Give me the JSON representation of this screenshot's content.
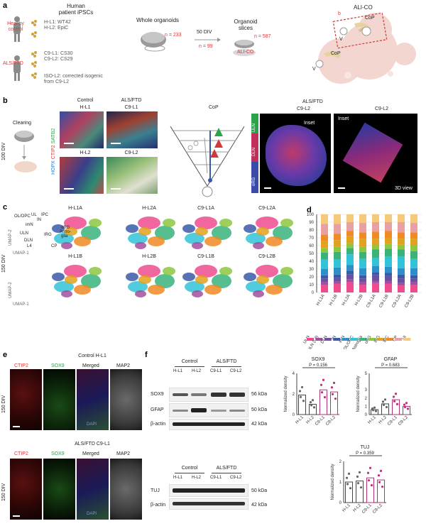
{
  "panels": {
    "a": "a",
    "b": "b",
    "c": "c",
    "d": "d",
    "e": "e",
    "f": "f"
  },
  "a": {
    "human_ipscs": "Human\npatient iPSCs",
    "healthy": "Healthy\ncontrol",
    "hl_lines": "H-L1: WT42\nH-L2: EpiC",
    "als": "ALS/FTD",
    "c9_lines": "C9-L1: CS30\nC9-L2: CS29",
    "iso": "ISO-L2: corrected isogenic\nfrom C9-L2",
    "whole": "Whole organoids",
    "n233": "n = 233",
    "div50": "50 DIV",
    "n99": "n = 99",
    "slices": "Organoid\nslices",
    "n587": "n = 587",
    "alico_red": "ALI-CO",
    "alico_title": "ALI-CO",
    "box_b": "b",
    "cop1": "CoP",
    "cop2": "CoP",
    "v1": "V",
    "v2": "V"
  },
  "b": {
    "clearing": "Clearing",
    "div100": "100 DIV",
    "stain_hopx": "HOPX",
    "stain_ctip2": "CTIP2",
    "stain_satb2": "SATB2",
    "control": "Control",
    "hl1": "H-L1",
    "als": "ALS/FTD",
    "c9l1": "C9-L1",
    "hl2": "H-L2",
    "c9l2": "C9-L2",
    "cop": "CoP",
    "uln": "ULN",
    "dln": "DLN",
    "org": "oRG",
    "als2": "ALS/FTD",
    "c9l2b": "C9-L2",
    "c9l2c": "C9-L2",
    "inset": "Inset",
    "inset2": "Inset",
    "view3d": "3D view"
  },
  "c": {
    "div150": "150 DIV",
    "umap2": "UMAP-2",
    "umap1": "UMAP-1",
    "titles_top": [
      "H-L1A",
      "H-L2A",
      "C9-L1A",
      "C9-L2A"
    ],
    "titles_bot": [
      "H-L1B",
      "H-L2B",
      "C9-L1B",
      "C9-L2B"
    ],
    "clusters": [
      "OL/OPC",
      "UL",
      "IN",
      "IPC",
      "ULN",
      "imN",
      "oRG",
      "Astro-glia",
      "DLN",
      "IRG",
      "CP",
      "L4"
    ]
  },
  "chart_data": {
    "type": "bar",
    "stacked": true,
    "categories": [
      "H-L1A",
      "H-L1B",
      "H-L2A",
      "H-L2B",
      "C9-L1A",
      "C9-L1B",
      "C9-L2A",
      "C9-L2B"
    ],
    "ylim": [
      0,
      100
    ],
    "yticks": [
      0,
      10,
      20,
      30,
      40,
      50,
      60,
      70,
      80,
      90,
      100
    ],
    "series": [
      {
        "name": "ULN",
        "color": "#ef4b8e",
        "values": [
          10,
          11,
          13,
          10,
          12,
          11,
          9,
          10
        ]
      },
      {
        "name": "ULN (L4)",
        "color": "#a24f9e",
        "values": [
          3,
          3,
          4,
          3,
          3,
          4,
          3,
          3
        ]
      },
      {
        "name": "DLN",
        "color": "#6b4fa0",
        "values": [
          5,
          5,
          6,
          5,
          7,
          6,
          6,
          5
        ]
      },
      {
        "name": "IN",
        "color": "#3a59a8",
        "values": [
          4,
          4,
          5,
          4,
          4,
          4,
          5,
          4
        ]
      },
      {
        "name": "imN",
        "color": "#2e8fc8",
        "values": [
          8,
          9,
          7,
          9,
          8,
          8,
          8,
          9
        ]
      },
      {
        "name": "OL/OPC",
        "color": "#33c3d8",
        "values": [
          12,
          10,
          14,
          12,
          10,
          13,
          15,
          12
        ]
      },
      {
        "name": "Astroglia",
        "color": "#3ab37b",
        "values": [
          9,
          10,
          8,
          9,
          11,
          10,
          9,
          10
        ]
      },
      {
        "name": "oRG",
        "color": "#8dc63f",
        "values": [
          6,
          7,
          6,
          7,
          5,
          6,
          6,
          7
        ]
      },
      {
        "name": "IRG",
        "color": "#e0a21f",
        "values": [
          9,
          8,
          9,
          10,
          9,
          8,
          8,
          9
        ]
      },
      {
        "name": "IPC",
        "color": "#f08a24",
        "values": [
          8,
          8,
          7,
          8,
          9,
          9,
          8,
          8
        ]
      },
      {
        "name": "CP",
        "color": "#e8a0a0",
        "values": [
          14,
          13,
          11,
          12,
          12,
          11,
          13,
          12
        ]
      },
      {
        "name": "UI",
        "color": "#f5c97a",
        "values": [
          12,
          12,
          10,
          11,
          10,
          10,
          10,
          11
        ]
      }
    ]
  },
  "e": {
    "top_title": "Control H-L1",
    "bot_title": "ALS/FTD C9-L1",
    "ctip2": "CTIP2",
    "sox9": "SOX9",
    "merged": "Merged",
    "map2": "MAP2",
    "div150": "150 DIV",
    "dapi": "DAPI"
  },
  "f": {
    "control": "Control",
    "als": "ALS/FTD",
    "lanes": [
      "H-L1",
      "H-L2",
      "C9-L1",
      "C9-L2"
    ],
    "sox9": "SOX9",
    "gfap": "GFAP",
    "bactin": "β-actin",
    "tuj": "TUJ",
    "kda56": "56 kDa",
    "kda50": "50 kDa",
    "kda42": "42 kDa",
    "kda50b": "50 kDa",
    "kda42b": "42 kDa",
    "ylabel": "Normalized density",
    "sox9_chart": {
      "title": "SOX9",
      "p": "P = 0.156",
      "ylim": [
        0,
        4
      ],
      "yticks": [
        0,
        2,
        4
      ],
      "groups": [
        "H-L1",
        "H-L2",
        "C9-L1",
        "C9-L2"
      ],
      "means": [
        1.9,
        1.0,
        2.4,
        2.2
      ]
    },
    "gfap_chart": {
      "title": "GFAP",
      "p": "P = 0.683",
      "ylim": [
        0,
        5
      ],
      "yticks": [
        0,
        1,
        2,
        3,
        5
      ],
      "groups": [
        "H-L1",
        "H-L2",
        "C9-L1",
        "C9-L2"
      ],
      "means": [
        0.6,
        1.3,
        1.8,
        1.0
      ]
    },
    "tuj_chart": {
      "title": "TUJ",
      "p": "P = 0.359",
      "ylim": [
        0,
        2
      ],
      "yticks": [
        0,
        1,
        2
      ],
      "groups": [
        "H-L1",
        "H-L2",
        "C9-L1",
        "C9-L2"
      ],
      "means": [
        1.0,
        1.05,
        1.2,
        1.1
      ]
    }
  }
}
